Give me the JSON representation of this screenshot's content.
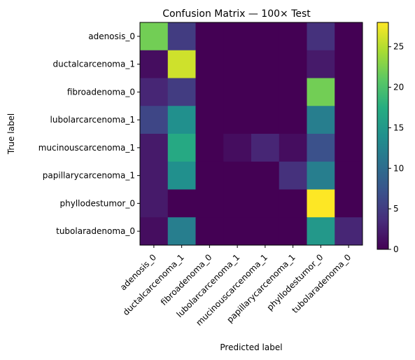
{
  "chart_data": {
    "type": "heatmap",
    "title": "Confusion Matrix — 100× Test",
    "xlabel": "Predicted label",
    "ylabel": "True label",
    "x_categories": [
      "adenosis_0",
      "ductalcarcenoma_1",
      "fibroadenoma_0",
      "lubolarcarcenoma_1",
      "mucinouscarcenoma_1",
      "papillarycarcenoma_1",
      "phyllodestumor_0",
      "tubolaradenoma_0"
    ],
    "y_categories": [
      "adenosis_0",
      "ductalcarcenoma_1",
      "fibroadenoma_0",
      "lubolarcarcenoma_1",
      "mucinouscarcenoma_1",
      "papillarycarcenoma_1",
      "phyllodestumor_0",
      "tubolaradenoma_0"
    ],
    "values": [
      [
        22,
        5,
        0,
        0,
        0,
        0,
        4,
        0
      ],
      [
        1,
        26,
        0,
        0,
        0,
        0,
        2,
        0
      ],
      [
        3,
        5,
        0,
        0,
        0,
        0,
        22,
        0
      ],
      [
        6,
        14,
        0,
        0,
        0,
        0,
        12,
        0
      ],
      [
        2,
        17,
        0,
        1,
        3,
        1,
        7,
        0
      ],
      [
        2,
        14,
        0,
        0,
        0,
        4,
        12,
        0
      ],
      [
        2,
        0,
        0,
        0,
        0,
        0,
        28,
        0
      ],
      [
        1,
        12,
        0,
        0,
        0,
        0,
        15,
        3
      ]
    ],
    "colormap": "viridis",
    "colorbar": {
      "vmin": 0,
      "vmax": 28,
      "ticks": [
        0,
        5,
        10,
        15,
        20,
        25
      ]
    }
  }
}
